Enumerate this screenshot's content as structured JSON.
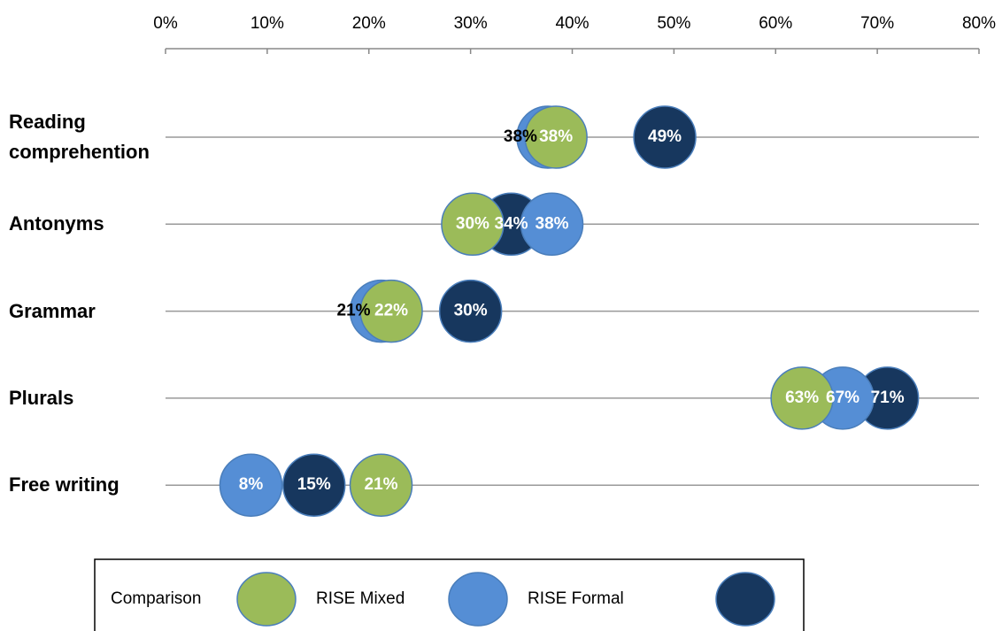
{
  "chart_data": {
    "type": "dot",
    "categories": [
      "Reading comprehention",
      "Antonyms",
      "Grammar",
      "Plurals",
      "Free writing"
    ],
    "series": [
      {
        "name": "Comparison",
        "color": "#9bbb59",
        "values": [
          38.4,
          30.2,
          22.2,
          62.6,
          21.2
        ],
        "value_labels": [
          "38%",
          "30%",
          "22%",
          "63%",
          "21%"
        ]
      },
      {
        "name": "RISE Mixed",
        "color": "#558ed5",
        "values": [
          37.6,
          38,
          21.2,
          66.6,
          8.4
        ],
        "value_labels": [
          "38%",
          "38%",
          "21%",
          "67%",
          "8%"
        ]
      },
      {
        "name": "RISE Formal",
        "color": "#17375e",
        "values": [
          49.1,
          34,
          30,
          71,
          14.6
        ],
        "value_labels": [
          "49%",
          "34%",
          "30%",
          "71%",
          "15%"
        ]
      }
    ],
    "xlim": [
      0,
      80
    ],
    "xticks": [
      {
        "value": 0,
        "label": "0%"
      },
      {
        "value": 10,
        "label": "10%"
      },
      {
        "value": 20,
        "label": "20%"
      },
      {
        "value": 30,
        "label": "30%"
      },
      {
        "value": 40,
        "label": "40%"
      },
      {
        "value": 50,
        "label": "50%"
      },
      {
        "value": 60,
        "label": "60%"
      },
      {
        "value": 70,
        "label": "70%"
      },
      {
        "value": 80,
        "label": "80%"
      }
    ],
    "legend": "bottom"
  }
}
